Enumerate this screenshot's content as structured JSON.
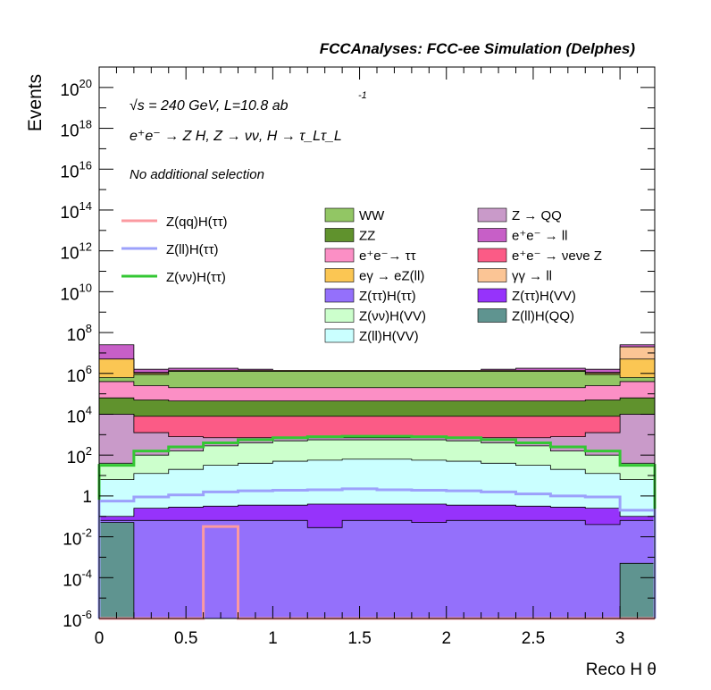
{
  "chart_data": {
    "type": "area",
    "header": "FCCAnalyses: FCC-ee Simulation (Delphes)",
    "xlabel": "Reco H θ",
    "ylabel": "Events",
    "xlim": [
      0,
      3.2
    ],
    "ylim": [
      1e-06,
      1e+21
    ],
    "y_scale": "log",
    "annotations": {
      "sqrt_s": "√s = 240 GeV, L=10.8 ab",
      "lumi_exp": "-1",
      "process": "e⁺e⁻ → Z H, Z → νν, H → τ_Lτ_L",
      "selection": "No additional selection"
    },
    "x_ticks": [
      {
        "value": 0,
        "label": "0"
      },
      {
        "value": 0.5,
        "label": "0.5"
      },
      {
        "value": 1,
        "label": "1"
      },
      {
        "value": 1.5,
        "label": "1.5"
      },
      {
        "value": 2,
        "label": "2"
      },
      {
        "value": 2.5,
        "label": "2.5"
      },
      {
        "value": 3,
        "label": "3"
      }
    ],
    "y_ticks": [
      {
        "exp": -6,
        "label": "10",
        "sup": "-6"
      },
      {
        "exp": -4,
        "label": "10",
        "sup": "-4"
      },
      {
        "exp": -2,
        "label": "10",
        "sup": "-2"
      },
      {
        "exp": 0,
        "label": "1",
        "sup": ""
      },
      {
        "exp": 2,
        "label": "10",
        "sup": "2"
      },
      {
        "exp": 4,
        "label": "10",
        "sup": "4"
      },
      {
        "exp": 6,
        "label": "10",
        "sup": "6"
      },
      {
        "exp": 8,
        "label": "10",
        "sup": "8"
      },
      {
        "exp": 10,
        "label": "10",
        "sup": "10"
      },
      {
        "exp": 12,
        "label": "10",
        "sup": "12"
      },
      {
        "exp": 14,
        "label": "10",
        "sup": "14"
      },
      {
        "exp": 16,
        "label": "10",
        "sup": "16"
      },
      {
        "exp": 18,
        "label": "10",
        "sup": "18"
      },
      {
        "exp": 20,
        "label": "10",
        "sup": "20"
      }
    ],
    "bin_edges": [
      0,
      0.2,
      0.4,
      0.6,
      0.8,
      1.0,
      1.2,
      1.4,
      1.6,
      1.8,
      2.0,
      2.2,
      2.4,
      2.6,
      2.8,
      3.0,
      3.2
    ],
    "stack_tops_log10": [
      {
        "name": "Z(ll)H(QQ)",
        "color": "#5f9490",
        "values": [
          -1.3,
          -6.2,
          -6.2,
          -6.2,
          -6.2,
          -6.2,
          -6.2,
          -6.2,
          -6.2,
          -6.2,
          -6.2,
          -6.2,
          -6.2,
          -6.2,
          -6.2,
          -3.3
        ]
      },
      {
        "name": "Z(ττ)H(ττ)",
        "color": "#9470fb",
        "values": [
          -1.2,
          -1.2,
          -1.2,
          -1.2,
          -1.2,
          -1.2,
          -1.55,
          -1.2,
          -1.2,
          -1.3,
          -1.2,
          -1.2,
          -1.2,
          -1.2,
          -1.4,
          -1.2
        ]
      },
      {
        "name": "Z(ττ)H(VV)",
        "color": "#9633fb",
        "values": [
          -1.0,
          -0.6,
          -0.55,
          -0.5,
          -0.45,
          -0.45,
          -0.4,
          -0.4,
          -0.4,
          -0.4,
          -0.45,
          -0.45,
          -0.5,
          -0.55,
          -0.6,
          -1.0
        ]
      },
      {
        "name": "Z(ll)H(VV)",
        "color": "#caffff",
        "values": [
          0.8,
          1.1,
          1.3,
          1.5,
          1.6,
          1.7,
          1.75,
          1.8,
          1.8,
          1.75,
          1.7,
          1.6,
          1.5,
          1.3,
          1.1,
          0.8
        ]
      },
      {
        "name": "Z(νν)H(VV)",
        "color": "#ccffcc",
        "values": [
          1.6,
          2.0,
          2.2,
          2.45,
          2.6,
          2.7,
          2.75,
          2.75,
          2.75,
          2.75,
          2.7,
          2.6,
          2.45,
          2.2,
          2.0,
          1.6
        ]
      },
      {
        "name": "Z → QQ",
        "color": "#c99ac9",
        "values": [
          4.0,
          3.1,
          2.9,
          2.85,
          2.85,
          2.85,
          2.85,
          2.85,
          2.85,
          2.85,
          2.85,
          2.85,
          2.85,
          2.9,
          3.1,
          4.0
        ]
      },
      {
        "name": "e⁺e⁻ → νeνe Z",
        "color": "#fb5b86",
        "values": [
          4.0,
          3.9,
          3.9,
          3.9,
          3.9,
          3.9,
          3.9,
          3.9,
          3.9,
          3.9,
          3.9,
          3.9,
          3.9,
          3.9,
          3.9,
          4.0
        ]
      },
      {
        "name": "ZZ",
        "color": "#60922d",
        "values": [
          4.8,
          4.7,
          4.65,
          4.65,
          4.65,
          4.65,
          4.65,
          4.65,
          4.65,
          4.65,
          4.65,
          4.65,
          4.65,
          4.65,
          4.7,
          4.8
        ]
      },
      {
        "name": "e⁺e⁻→ ττ",
        "color": "#fb8fc5",
        "values": [
          5.6,
          5.4,
          5.3,
          5.3,
          5.3,
          5.3,
          5.3,
          5.3,
          5.3,
          5.3,
          5.3,
          5.3,
          5.3,
          5.3,
          5.4,
          5.6
        ]
      },
      {
        "name": "WW",
        "color": "#92c664",
        "values": [
          5.8,
          5.95,
          6.1,
          6.1,
          6.1,
          6.1,
          6.1,
          6.1,
          6.1,
          6.1,
          6.1,
          6.1,
          6.1,
          6.1,
          5.95,
          5.8
        ]
      },
      {
        "name": "eγ → eZ(ll)",
        "color": "#fbc653",
        "values": [
          6.7,
          6.0,
          6.1,
          6.1,
          6.1,
          6.1,
          6.1,
          6.1,
          6.1,
          6.1,
          6.1,
          6.1,
          6.1,
          6.1,
          6.0,
          6.7
        ]
      },
      {
        "name": "γγ → ll",
        "color": "#fbc595",
        "values": [
          6.7,
          6.05,
          6.15,
          6.15,
          6.15,
          6.15,
          6.15,
          6.15,
          6.15,
          6.15,
          6.15,
          6.15,
          6.15,
          6.15,
          6.05,
          7.3
        ]
      },
      {
        "name": "e⁺e⁻ → ll",
        "color": "#c75fc7",
        "values": [
          7.4,
          6.2,
          6.25,
          6.25,
          6.2,
          6.15,
          6.15,
          6.15,
          6.15,
          6.15,
          6.15,
          6.2,
          6.25,
          6.25,
          6.2,
          7.4
        ]
      }
    ],
    "signal_lines_log10": [
      {
        "name": "Z(νν)H(ττ)",
        "color": "#33c733",
        "values": [
          1.5,
          2.2,
          2.4,
          2.6,
          2.75,
          2.85,
          2.9,
          2.92,
          2.92,
          2.9,
          2.85,
          2.75,
          2.6,
          2.4,
          2.2,
          1.5
        ]
      },
      {
        "name": "Z(ll)H(ττ)",
        "color": "#9ca1fb",
        "values": [
          -0.25,
          -0.05,
          0.05,
          0.2,
          0.25,
          0.28,
          0.3,
          0.35,
          0.3,
          0.28,
          0.25,
          0.2,
          0.1,
          0.0,
          -0.05,
          -0.7
        ]
      },
      {
        "name": "Z(qq)H(ττ)",
        "color": "#fb9aa0",
        "values": [
          -6.2,
          -6.2,
          -6.2,
          -1.5,
          -6.2,
          -6.2,
          -6.2,
          -6.2,
          -6.2,
          -6.2,
          -6.2,
          -6.2,
          -6.2,
          -6.2,
          -6.2,
          -6.2
        ]
      }
    ],
    "legend": {
      "lines": [
        {
          "label": "Z(qq)H(ττ)",
          "color": "#fb9aa0"
        },
        {
          "label": "Z(ll)H(ττ)",
          "color": "#9ca1fb"
        },
        {
          "label": "Z(νν)H(ττ)",
          "color": "#33c733"
        }
      ],
      "col1": [
        {
          "label": "WW",
          "color": "#92c664"
        },
        {
          "label": "ZZ",
          "color": "#60922d"
        },
        {
          "label": "e⁺e⁻→ ττ",
          "color": "#fb8fc5"
        },
        {
          "label": "eγ → eZ(ll)",
          "color": "#fbc653"
        },
        {
          "label": "Z(ττ)H(ττ)",
          "color": "#9470fb"
        },
        {
          "label": "Z(νν)H(VV)",
          "color": "#ccffcc"
        },
        {
          "label": "Z(ll)H(VV)",
          "color": "#caffff"
        }
      ],
      "col2": [
        {
          "label": "Z → QQ",
          "color": "#c99ac9"
        },
        {
          "label": "e⁺e⁻ → ll",
          "color": "#c75fc7"
        },
        {
          "label": "e⁺e⁻ → νeνe Z",
          "color": "#fb5b86"
        },
        {
          "label": "γγ → ll",
          "color": "#fbc595"
        },
        {
          "label": "Z(ττ)H(VV)",
          "color": "#9633fb"
        },
        {
          "label": "Z(ll)H(QQ)",
          "color": "#5f9490"
        }
      ]
    },
    "legend_placement": "top"
  }
}
